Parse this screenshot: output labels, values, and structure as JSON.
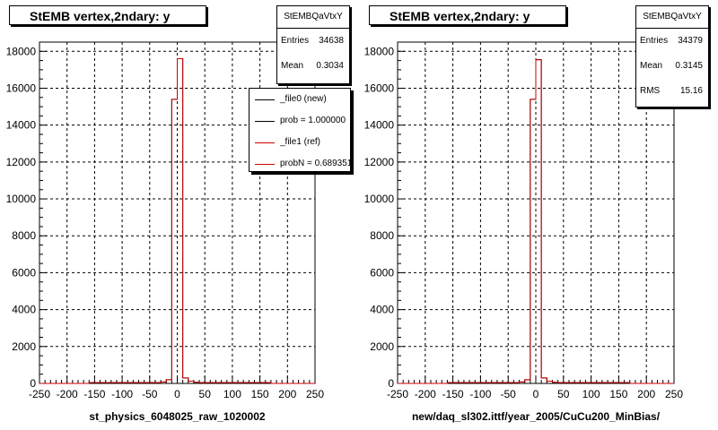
{
  "colors": {
    "new": "#000000",
    "ref": "#cc0000",
    "grid": "#000000"
  },
  "chart_data": [
    {
      "type": "bar",
      "title": "StEMB  vertex,2ndary: y",
      "xlabel": "st_physics_6048025_raw_1020002",
      "ylabel": "",
      "xlim": [
        -250,
        250
      ],
      "ylim": [
        0,
        18500
      ],
      "xticks": [
        -250,
        -200,
        -150,
        -100,
        -50,
        0,
        50,
        100,
        150,
        200,
        250
      ],
      "yticks": [
        0,
        2000,
        4000,
        6000,
        8000,
        10000,
        12000,
        14000,
        16000,
        18000
      ],
      "grid": true,
      "legend_position": "top-right",
      "bin_edges": [
        -160,
        -150,
        -140,
        -130,
        -120,
        -110,
        -100,
        -90,
        -80,
        -70,
        -60,
        -50,
        -40,
        -30,
        -20,
        -10,
        0,
        10,
        20,
        30,
        40,
        50,
        60,
        70,
        80,
        90,
        100,
        110,
        120,
        130,
        140,
        150,
        160,
        170
      ],
      "series": [
        {
          "name": "_file0 (new)",
          "color": "#000000",
          "values": [
            40,
            40,
            40,
            40,
            40,
            40,
            40,
            40,
            40,
            40,
            40,
            40,
            40,
            80,
            200,
            15400,
            17600,
            300,
            120,
            60,
            40,
            40,
            40,
            40,
            40,
            40,
            40,
            40,
            40,
            40,
            40,
            40,
            40
          ]
        },
        {
          "name": "_file1 (ref)",
          "color": "#cc0000",
          "values": [
            40,
            40,
            40,
            40,
            40,
            40,
            40,
            40,
            40,
            40,
            40,
            40,
            40,
            80,
            200,
            15400,
            17600,
            300,
            120,
            60,
            40,
            40,
            40,
            40,
            40,
            40,
            40,
            40,
            40,
            40,
            40,
            40,
            40
          ]
        }
      ],
      "stats": {
        "header": "StEMBQaVtxY",
        "entries_label": "Entries",
        "entries": "34638",
        "mean_label": "Mean",
        "mean": "0.3034"
      },
      "legend": [
        {
          "label": "_file0 (new)",
          "color": "#000000"
        },
        {
          "label": "prob = 1.000000",
          "color": "#000000"
        },
        {
          "label": "_file1 (ref)",
          "color": "#cc0000"
        },
        {
          "label": "probN = 0.689351",
          "color": "#cc0000"
        }
      ]
    },
    {
      "type": "bar",
      "title": "StEMB  vertex,2ndary: y",
      "xlabel": "new/daq_sl302.ittf/year_2005/CuCu200_MinBias/",
      "ylabel": "",
      "xlim": [
        -250,
        250
      ],
      "ylim": [
        0,
        18500
      ],
      "xticks": [
        -250,
        -200,
        -150,
        -100,
        -50,
        0,
        50,
        100,
        150,
        200,
        250
      ],
      "yticks": [
        0,
        2000,
        4000,
        6000,
        8000,
        10000,
        12000,
        14000,
        16000,
        18000
      ],
      "grid": true,
      "bin_edges": [
        -160,
        -150,
        -140,
        -130,
        -120,
        -110,
        -100,
        -90,
        -80,
        -70,
        -60,
        -50,
        -40,
        -30,
        -20,
        -10,
        0,
        10,
        20,
        30,
        40,
        50,
        60,
        70,
        80,
        90,
        100,
        110,
        120,
        130,
        140,
        150,
        160,
        170
      ],
      "series": [
        {
          "color": "#000000",
          "values": [
            40,
            40,
            40,
            40,
            40,
            40,
            40,
            40,
            40,
            40,
            40,
            40,
            40,
            80,
            200,
            15400,
            17550,
            300,
            120,
            60,
            40,
            40,
            40,
            40,
            40,
            40,
            40,
            40,
            40,
            40,
            40,
            40,
            40
          ]
        },
        {
          "color": "#cc0000",
          "values": [
            40,
            40,
            40,
            40,
            40,
            40,
            40,
            40,
            40,
            40,
            40,
            40,
            40,
            80,
            200,
            15400,
            17550,
            300,
            120,
            60,
            40,
            40,
            40,
            40,
            40,
            40,
            40,
            40,
            40,
            40,
            40,
            40,
            40
          ]
        }
      ],
      "stats": {
        "header": "StEMBQaVtxY",
        "entries_label": "Entries",
        "entries": "34379",
        "mean_label": "Mean",
        "mean": "0.3145",
        "rms_label": "RMS",
        "rms": "15.16"
      }
    }
  ]
}
